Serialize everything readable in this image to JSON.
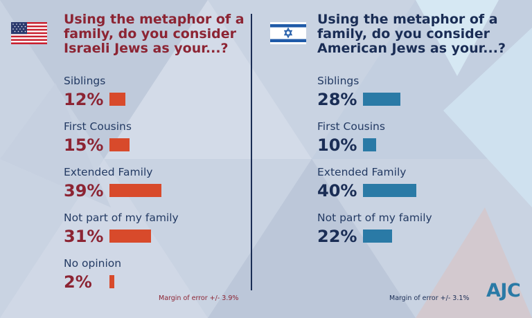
{
  "logo": "AJC",
  "chart_data": [
    {
      "type": "bar",
      "title": "Using the metaphor of a family, do you consider Israeli Jews as your...?",
      "categories": [
        "Siblings",
        "First Cousins",
        "Extended Family",
        "Not part of my family",
        "No opinion"
      ],
      "values": [
        12,
        15,
        39,
        31,
        2
      ],
      "labels": [
        "12%",
        "15%",
        "39%",
        "31%",
        "2%"
      ],
      "note": "Margin of error +/- 3.9%",
      "bar_color": "#d84a2b",
      "text_color": "#8c2433",
      "flag": "us-flag-icon"
    },
    {
      "type": "bar",
      "title": "Using the metaphor of a family, do you consider American Jews as your...?",
      "categories": [
        "Siblings",
        "First Cousins",
        "Extended Family",
        "Not part of my family"
      ],
      "values": [
        28,
        10,
        40,
        22
      ],
      "labels": [
        "28%",
        "10%",
        "40%",
        "22%"
      ],
      "note": "Margin of error +/- 3.1%",
      "bar_color": "#2a7aa6",
      "text_color": "#1a2d55",
      "flag": "israel-flag-icon"
    }
  ]
}
